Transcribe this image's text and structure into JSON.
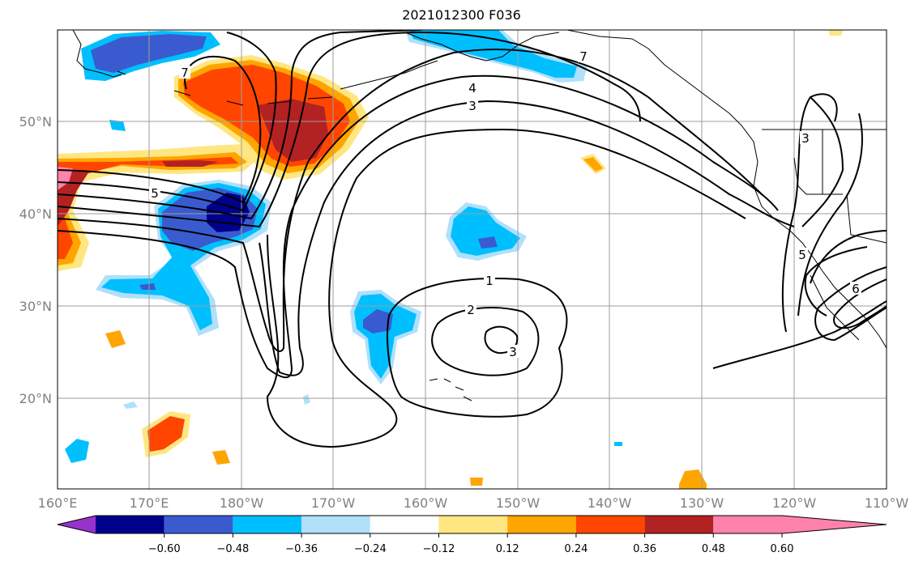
{
  "title": "2021012300 F036",
  "lat_labels": [
    "50°N",
    "40°N",
    "30°N",
    "20°N"
  ],
  "lon_labels": [
    "160°E",
    "170°E",
    "180°W",
    "170°W",
    "160°W",
    "150°W",
    "140°W",
    "130°W",
    "120°W",
    "110°W"
  ],
  "contour_labels": [
    "7",
    "7",
    "4",
    "3",
    "5",
    "1",
    "2",
    "3",
    "3",
    "5",
    "6"
  ],
  "colorbar": {
    "tick_labels": [
      "−0.60",
      "−0.48",
      "−0.36",
      "−0.24",
      "−0.12",
      "0.12",
      "0.24",
      "0.36",
      "0.48",
      "0.60"
    ],
    "colors": [
      "#9932cc",
      "#00008b",
      "#3a5bd0",
      "#00bfff",
      "#b0e0fa",
      "#ffffff",
      "#ffe680",
      "#ffa500",
      "#ff4500",
      "#b22222",
      "#ff82ab"
    ]
  },
  "colors": {
    "grid": "#9e9e9e",
    "contour": "#000000",
    "coast": "#000000",
    "axis_text": "#808080"
  }
}
